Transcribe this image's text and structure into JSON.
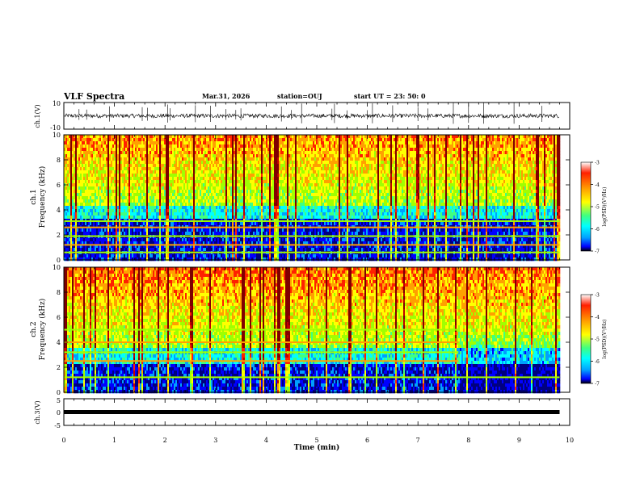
{
  "header": {
    "title": "VLF Spectra",
    "date": "Mar.31, 2026",
    "station": "station=OUJ",
    "start": "start  UT =   23: 50: 0"
  },
  "colors": {
    "colormap": [
      "#000080",
      "#0000ff",
      "#00a0ff",
      "#00ffff",
      "#40ff80",
      "#a0ff00",
      "#ffff00",
      "#ffa000",
      "#ff2000",
      "#c00000",
      "#800000"
    ],
    "waveform": "#000000"
  },
  "chart_data": [
    {
      "type": "line",
      "panel": "ch1-waveform",
      "ylabel": "ch.1(V)",
      "ylim": [
        -10,
        10
      ],
      "yticks": [
        "10",
        "-10"
      ],
      "xlim": [
        0,
        10
      ],
      "baseline_v": 0,
      "noise_amplitude_v": 1.5,
      "spikes_min": [
        0.3,
        0.45,
        0.9,
        1.55,
        1.65,
        2.05,
        2.1,
        2.6,
        2.9,
        3.2,
        3.4,
        3.5,
        4.3,
        4.5,
        4.7,
        5.3,
        5.35,
        5.6,
        6.0,
        6.1,
        6.5,
        7.0,
        7.2,
        7.7,
        8.0,
        8.3,
        8.9,
        9.45
      ]
    },
    {
      "type": "heatmap",
      "panel": "ch1-spectrogram",
      "ylabel": "Frequency (kHz)",
      "channel_label": "ch.1",
      "ylim": [
        0,
        10
      ],
      "yticks": [
        "0",
        "2",
        "4",
        "6",
        "8",
        "10"
      ],
      "xlim": [
        0,
        9.8
      ],
      "colorbar": {
        "label": "log(PSD)(V²/Hz)",
        "range": [
          -7,
          -3
        ],
        "ticks": [
          "-3",
          "-4",
          "-5",
          "-6",
          "-7"
        ]
      },
      "lines_khz": [
        0.6,
        1.2,
        1.9,
        2.6,
        3.1
      ],
      "noise_floor_khz": 4.5
    },
    {
      "type": "heatmap",
      "panel": "ch2-spectrogram",
      "ylabel": "Frequency (kHz)",
      "channel_label": "ch.2",
      "ylim": [
        0,
        10
      ],
      "yticks": [
        "0",
        "2",
        "4",
        "6",
        "8",
        "10"
      ],
      "xlim": [
        0,
        9.8
      ],
      "colorbar": {
        "label": "log(PSD)(V²/Hz)",
        "range": [
          -7,
          -3
        ],
        "ticks": [
          "-3",
          "-4",
          "-5",
          "-6",
          "-7"
        ]
      },
      "lines_khz": [
        1.2,
        2.5,
        3.2,
        4.0,
        5.0
      ],
      "line_end_min": 7.8,
      "noise_floor_khz": 3.6
    },
    {
      "type": "line",
      "panel": "ch3-level",
      "ylabel": "ch.3(V)",
      "ylim": [
        -5,
        5
      ],
      "yticks": [
        "5",
        "0",
        "-5"
      ],
      "xlim": [
        0,
        9.8
      ],
      "level_v": 0
    }
  ],
  "xaxis": {
    "label": "Time (min)",
    "range": [
      0,
      10
    ],
    "ticks": [
      "0",
      "1",
      "2",
      "3",
      "4",
      "5",
      "6",
      "7",
      "8",
      "9",
      "10"
    ]
  }
}
